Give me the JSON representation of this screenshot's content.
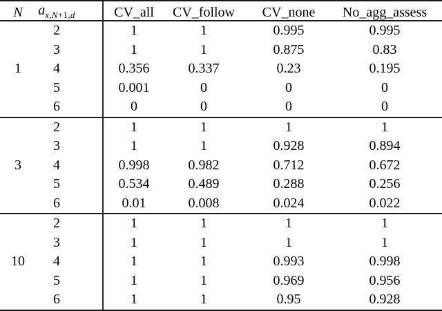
{
  "table": {
    "header": {
      "col_n": "N",
      "col_a_base": "a",
      "col_a_sub_x": "x,N",
      "col_a_sub_plus": "+1,",
      "col_a_sub_d": "d",
      "data_cols": [
        "CV_all",
        "CV_follow",
        "CV_none",
        "No_agg_assess"
      ]
    },
    "groups": [
      {
        "n": "1",
        "rows": [
          {
            "a": "2",
            "values": [
              "1",
              "1",
              "0.995",
              "0.995"
            ]
          },
          {
            "a": "3",
            "values": [
              "1",
              "1",
              "0.875",
              "0.83"
            ]
          },
          {
            "a": "4",
            "values": [
              "0.356",
              "0.337",
              "0.23",
              "0.195"
            ]
          },
          {
            "a": "5",
            "values": [
              "0.001",
              "0",
              "0",
              "0"
            ]
          },
          {
            "a": "6",
            "values": [
              "0",
              "0",
              "0",
              "0"
            ]
          }
        ]
      },
      {
        "n": "3",
        "rows": [
          {
            "a": "2",
            "values": [
              "1",
              "1",
              "1",
              "1"
            ]
          },
          {
            "a": "3",
            "values": [
              "1",
              "1",
              "0.928",
              "0.894"
            ]
          },
          {
            "a": "4",
            "values": [
              "0.998",
              "0.982",
              "0.712",
              "0.672"
            ]
          },
          {
            "a": "5",
            "values": [
              "0.534",
              "0.489",
              "0.288",
              "0.256"
            ]
          },
          {
            "a": "6",
            "values": [
              "0.01",
              "0.008",
              "0.024",
              "0.022"
            ]
          }
        ]
      },
      {
        "n": "10",
        "rows": [
          {
            "a": "2",
            "values": [
              "1",
              "1",
              "1",
              "1"
            ]
          },
          {
            "a": "3",
            "values": [
              "1",
              "1",
              "1",
              "1"
            ]
          },
          {
            "a": "4",
            "values": [
              "1",
              "1",
              "0.993",
              "0.998"
            ]
          },
          {
            "a": "5",
            "values": [
              "1",
              "1",
              "0.969",
              "0.956"
            ]
          },
          {
            "a": "6",
            "values": [
              "1",
              "1",
              "0.95",
              "0.928"
            ]
          }
        ]
      }
    ]
  },
  "colors": {
    "background": "#ffffff",
    "text": "#000000",
    "rule": "#161616"
  }
}
